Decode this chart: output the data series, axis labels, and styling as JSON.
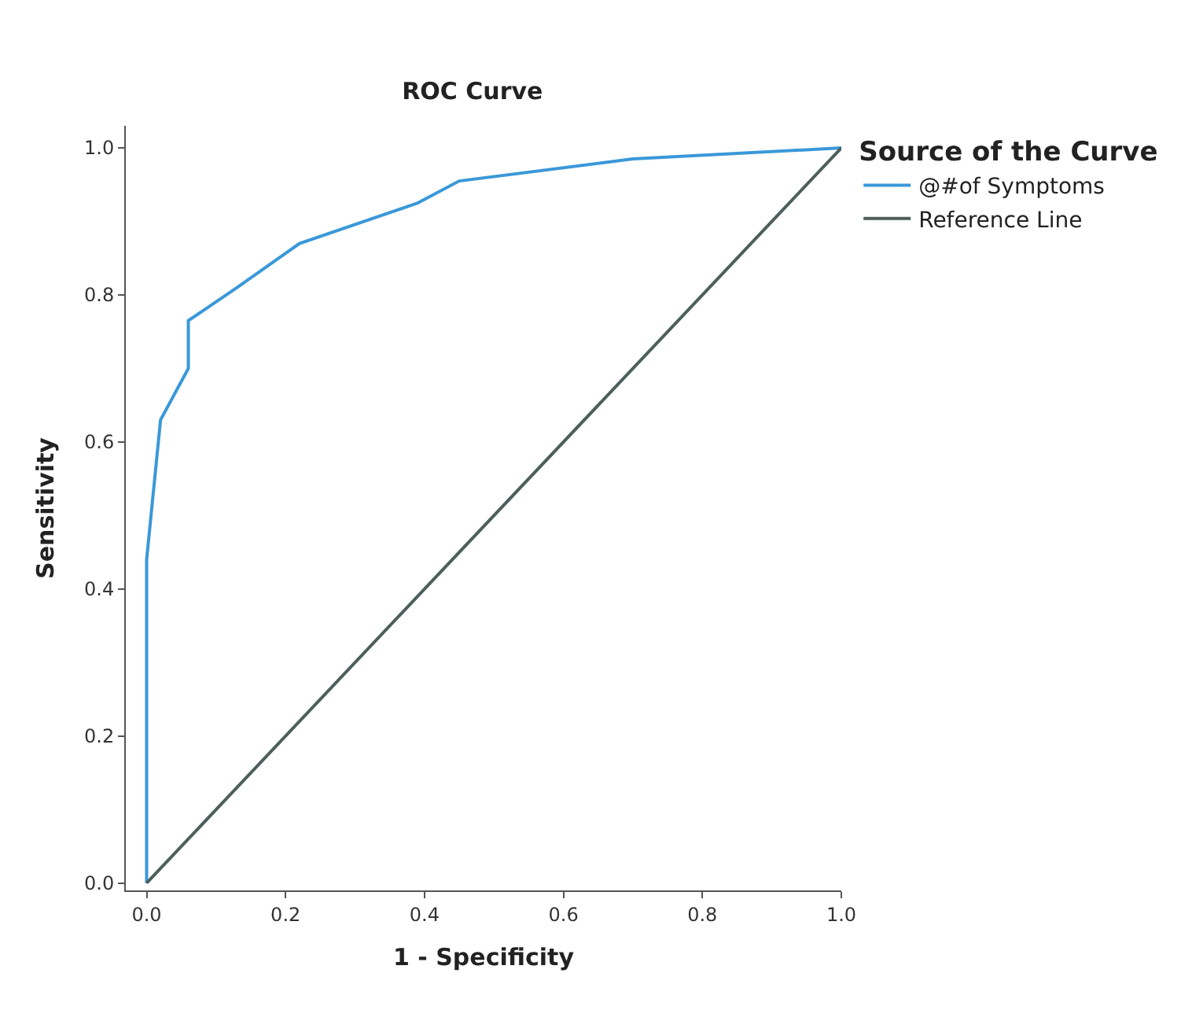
{
  "chart_data": {
    "type": "line",
    "title": "ROC Curve",
    "xlabel": "1 - Specificity",
    "ylabel": "Sensitivity",
    "legend_title": "Source of the Curve",
    "series": [
      {
        "name": "@#of Symptoms",
        "color": "#3a98d8",
        "x": [
          0,
          0,
          0.02,
          0.06,
          0.06,
          0.13,
          0.22,
          0.39,
          0.45,
          0.7,
          1.0
        ],
        "values": [
          0,
          0.44,
          0.63,
          0.7,
          0.765,
          0.81,
          0.87,
          0.925,
          0.955,
          0.985,
          1.0
        ]
      },
      {
        "name": "Reference Line",
        "color": "#4d5f5a",
        "x": [
          0,
          1.0
        ],
        "values": [
          0,
          1.0
        ]
      }
    ],
    "xlim": [
      -0.03,
      1.0
    ],
    "ylim": [
      -0.01,
      1.03
    ],
    "xticks": [
      {
        "value": 0,
        "label": "0.0"
      },
      0.2,
      0.4,
      0.6,
      0.8,
      {
        "value": 1.0,
        "label": "1.0"
      }
    ],
    "yticks": [
      {
        "value": 0,
        "label": "0.0"
      },
      0.2,
      0.4,
      0.6,
      0.8,
      {
        "value": 1.0,
        "label": "1.0"
      }
    ],
    "legend": "top right",
    "marker": "none",
    "line_style": "solid"
  }
}
